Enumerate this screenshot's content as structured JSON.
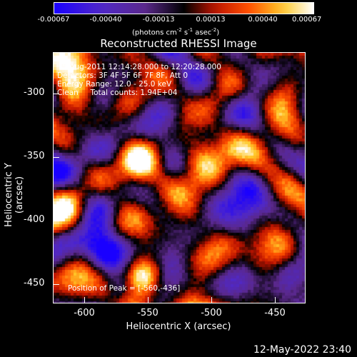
{
  "colorbar": {
    "ticks": [
      "-0.00067",
      "-0.00040",
      "-0.00013",
      "0.00013",
      "0.00040",
      "0.00067"
    ],
    "unit_prefix": "(photons cm",
    "unit_sup1": "-2",
    "unit_mid1": " s",
    "unit_sup2": "-1",
    "unit_mid2": " asec",
    "unit_sup3": "-2",
    "unit_suffix": ")"
  },
  "title": "Reconstructed RHESSI Image",
  "overlay": {
    "time_range": "5-Aug-2011 12:14:28.000 to 12:20:28.000",
    "detectors": "Detectors: 3F 4F 5F 6F 7F 8F, Att 0",
    "energy": "Energy Range: 12.0 - 25.0 keV",
    "clean": "Clean     Total counts: 1.94E+04",
    "peak": "Position of Peak = [-560,-436]"
  },
  "axes": {
    "ylabel": "Heliocentric Y (arcsec)",
    "xlabel": "Heliocentric X (arcsec)",
    "yticks": [
      "-300",
      "-350",
      "-400",
      "-450"
    ],
    "xticks": [
      "-600",
      "-550",
      "-500",
      "-450"
    ]
  },
  "timestamp": "12-May-2022 23:40",
  "colors": {
    "low": "#1a00ff",
    "mid": "#000000",
    "high": "#ffffff"
  }
}
